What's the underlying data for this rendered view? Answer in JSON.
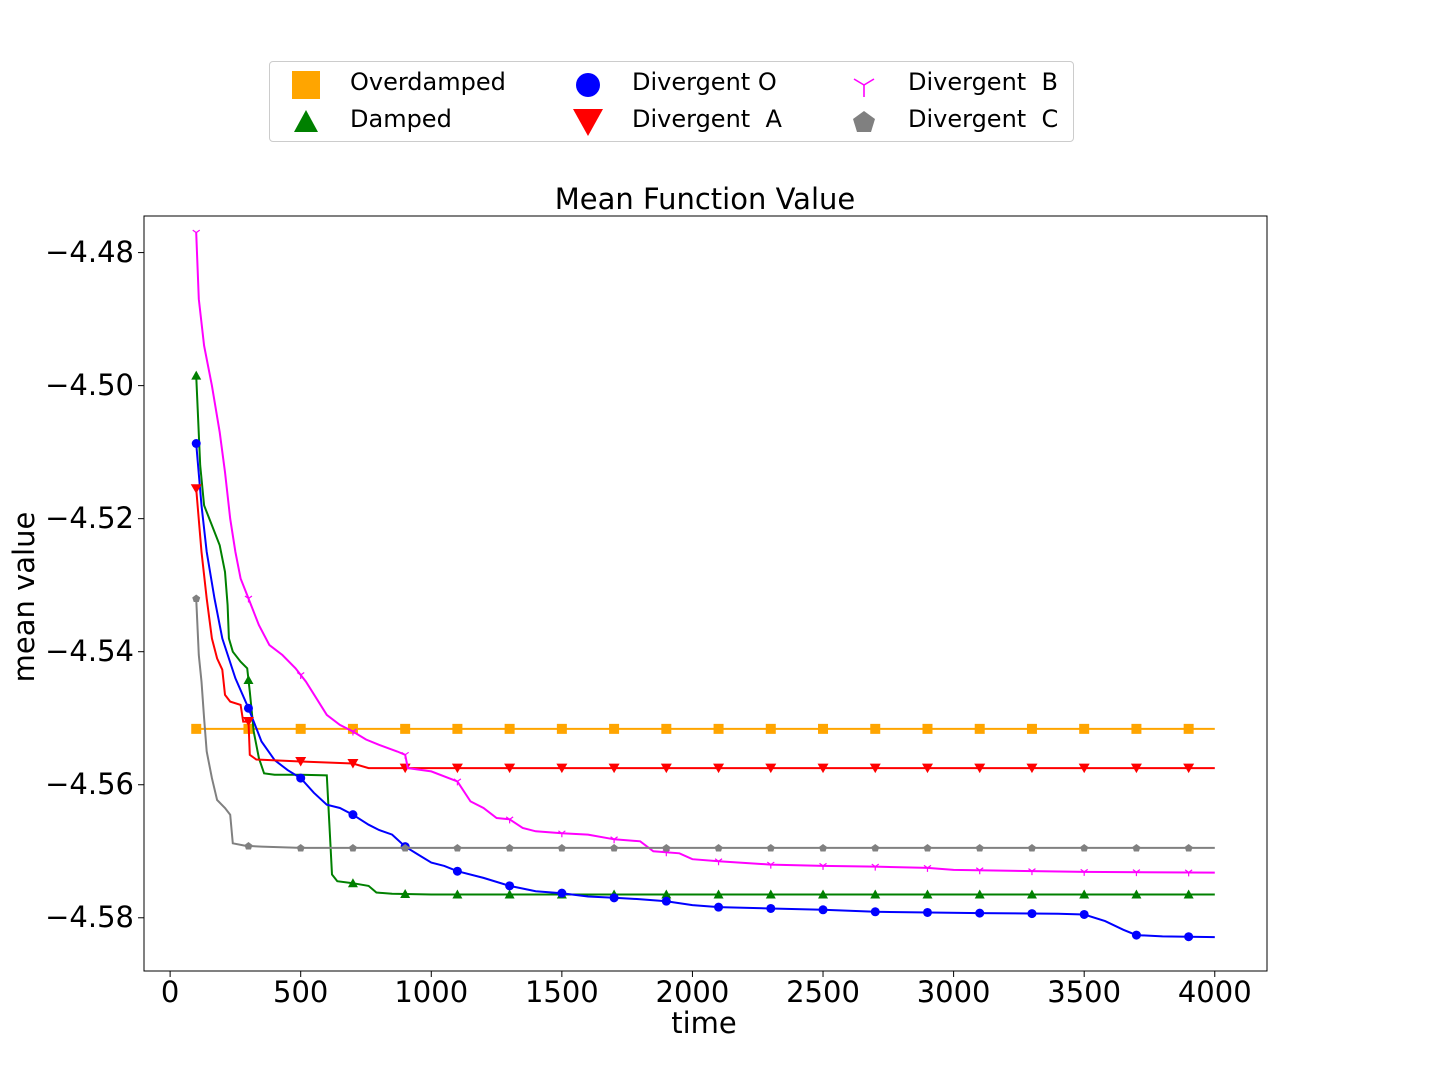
{
  "chart_data": {
    "type": "line",
    "title": "Mean Function Value",
    "xlabel": "time",
    "ylabel": "mean value",
    "xlim": [
      -100,
      4200
    ],
    "ylim": [
      -4.588,
      -4.4745
    ],
    "x_ticks": [
      0,
      500,
      1000,
      1500,
      2000,
      2500,
      3000,
      3500,
      4000
    ],
    "x_tick_labels": [
      "0",
      "500",
      "1000",
      "1500",
      "2000",
      "2500",
      "3000",
      "3500",
      "4000"
    ],
    "y_ticks": [
      -4.48,
      -4.5,
      -4.52,
      -4.54,
      -4.56,
      -4.58
    ],
    "y_tick_labels": [
      "−4.48",
      "−4.50",
      "−4.52",
      "−4.54",
      "−4.56",
      "−4.58"
    ],
    "grid": false,
    "legend_position": "above the plot, three columns",
    "series": [
      {
        "name": "Overdamped",
        "color": "#ffa500",
        "marker": "square",
        "points": [
          [
            100,
            -4.5516
          ],
          [
            4000,
            -4.5516
          ]
        ]
      },
      {
        "name": "Damped",
        "color": "#008000",
        "marker": "triangle-up",
        "points": [
          [
            100,
            -4.4985
          ],
          [
            115,
            -4.512
          ],
          [
            130,
            -4.518
          ],
          [
            160,
            -4.521
          ],
          [
            190,
            -4.524
          ],
          [
            210,
            -4.528
          ],
          [
            220,
            -4.533
          ],
          [
            225,
            -4.538
          ],
          [
            240,
            -4.54
          ],
          [
            270,
            -4.5415
          ],
          [
            295,
            -4.5425
          ],
          [
            305,
            -4.546
          ],
          [
            320,
            -4.552
          ],
          [
            340,
            -4.556
          ],
          [
            360,
            -4.5583
          ],
          [
            400,
            -4.5585
          ],
          [
            500,
            -4.5585
          ],
          [
            600,
            -4.5586
          ],
          [
            610,
            -4.566
          ],
          [
            620,
            -4.5735
          ],
          [
            640,
            -4.5745
          ],
          [
            700,
            -4.5748
          ],
          [
            760,
            -4.5752
          ],
          [
            790,
            -4.5762
          ],
          [
            850,
            -4.5764
          ],
          [
            1000,
            -4.5765
          ],
          [
            4000,
            -4.5765
          ]
        ]
      },
      {
        "name": "Divergent O",
        "color": "#0000ff",
        "marker": "circle",
        "points": [
          [
            100,
            -4.5087
          ],
          [
            120,
            -4.518
          ],
          [
            140,
            -4.525
          ],
          [
            170,
            -4.532
          ],
          [
            200,
            -4.538
          ],
          [
            250,
            -4.544
          ],
          [
            300,
            -4.5485
          ],
          [
            350,
            -4.5535
          ],
          [
            400,
            -4.5563
          ],
          [
            450,
            -4.5578
          ],
          [
            500,
            -4.559
          ],
          [
            550,
            -4.5612
          ],
          [
            600,
            -4.563
          ],
          [
            650,
            -4.5635
          ],
          [
            700,
            -4.5645
          ],
          [
            760,
            -4.566
          ],
          [
            800,
            -4.5668
          ],
          [
            850,
            -4.5675
          ],
          [
            900,
            -4.5693
          ],
          [
            950,
            -4.5705
          ],
          [
            1000,
            -4.5717
          ],
          [
            1050,
            -4.5722
          ],
          [
            1100,
            -4.573
          ],
          [
            1200,
            -4.574
          ],
          [
            1300,
            -4.5752
          ],
          [
            1400,
            -4.576
          ],
          [
            1500,
            -4.5763
          ],
          [
            1600,
            -4.5768
          ],
          [
            1700,
            -4.577
          ],
          [
            1800,
            -4.5772
          ],
          [
            1900,
            -4.5775
          ],
          [
            2000,
            -4.5781
          ],
          [
            2100,
            -4.5784
          ],
          [
            2300,
            -4.5786
          ],
          [
            2500,
            -4.5788
          ],
          [
            2700,
            -4.5791
          ],
          [
            3100,
            -4.5793
          ],
          [
            3400,
            -4.5794
          ],
          [
            3500,
            -4.5795
          ],
          [
            3580,
            -4.5805
          ],
          [
            3650,
            -4.5818
          ],
          [
            3700,
            -4.5826
          ],
          [
            3800,
            -4.5828
          ],
          [
            4000,
            -4.5829
          ]
        ]
      },
      {
        "name": "Divergent  A",
        "color": "#ff0000",
        "marker": "triangle-down",
        "points": [
          [
            100,
            -4.5155
          ],
          [
            120,
            -4.525
          ],
          [
            140,
            -4.532
          ],
          [
            160,
            -4.538
          ],
          [
            180,
            -4.541
          ],
          [
            200,
            -4.5427
          ],
          [
            210,
            -4.5465
          ],
          [
            230,
            -4.5475
          ],
          [
            270,
            -4.548
          ],
          [
            280,
            -4.5505
          ],
          [
            300,
            -4.5505
          ],
          [
            305,
            -4.5555
          ],
          [
            330,
            -4.5562
          ],
          [
            500,
            -4.5565
          ],
          [
            700,
            -4.5568
          ],
          [
            760,
            -4.5575
          ],
          [
            4000,
            -4.5575
          ]
        ]
      },
      {
        "name": "Divergent  B",
        "color": "#ff00ff",
        "marker": "tri-down",
        "points": [
          [
            100,
            -4.477
          ],
          [
            110,
            -4.487
          ],
          [
            130,
            -4.494
          ],
          [
            160,
            -4.5
          ],
          [
            190,
            -4.507
          ],
          [
            210,
            -4.513
          ],
          [
            230,
            -4.52
          ],
          [
            250,
            -4.525
          ],
          [
            270,
            -4.529
          ],
          [
            300,
            -4.532
          ],
          [
            340,
            -4.536
          ],
          [
            380,
            -4.539
          ],
          [
            430,
            -4.5405
          ],
          [
            480,
            -4.5425
          ],
          [
            520,
            -4.5445
          ],
          [
            560,
            -4.547
          ],
          [
            600,
            -4.5495
          ],
          [
            650,
            -4.551
          ],
          [
            700,
            -4.552
          ],
          [
            750,
            -4.5532
          ],
          [
            800,
            -4.554
          ],
          [
            870,
            -4.555
          ],
          [
            900,
            -4.5555
          ],
          [
            910,
            -4.5575
          ],
          [
            1000,
            -4.558
          ],
          [
            1100,
            -4.5595
          ],
          [
            1150,
            -4.5625
          ],
          [
            1200,
            -4.5635
          ],
          [
            1250,
            -4.565
          ],
          [
            1300,
            -4.5652
          ],
          [
            1350,
            -4.5665
          ],
          [
            1400,
            -4.567
          ],
          [
            1500,
            -4.5673
          ],
          [
            1600,
            -4.5675
          ],
          [
            1700,
            -4.5682
          ],
          [
            1800,
            -4.5685
          ],
          [
            1850,
            -4.57
          ],
          [
            1950,
            -4.5703
          ],
          [
            2000,
            -4.5712
          ],
          [
            2100,
            -4.5715
          ],
          [
            2300,
            -4.572
          ],
          [
            2500,
            -4.5722
          ],
          [
            2700,
            -4.5723
          ],
          [
            2900,
            -4.5725
          ],
          [
            3000,
            -4.5728
          ],
          [
            3500,
            -4.5731
          ],
          [
            4000,
            -4.5732
          ]
        ]
      },
      {
        "name": "Divergent  C",
        "color": "#808080",
        "marker": "pentagon",
        "points": [
          [
            100,
            -4.532
          ],
          [
            110,
            -4.5405
          ],
          [
            120,
            -4.5445
          ],
          [
            130,
            -4.55
          ],
          [
            140,
            -4.555
          ],
          [
            160,
            -4.559
          ],
          [
            180,
            -4.5623
          ],
          [
            210,
            -4.5635
          ],
          [
            230,
            -4.5645
          ],
          [
            240,
            -4.5688
          ],
          [
            290,
            -4.5692
          ],
          [
            350,
            -4.5693
          ],
          [
            500,
            -4.5695
          ],
          [
            4000,
            -4.5695
          ]
        ]
      }
    ],
    "marker_x": {
      "Overdamped": [
        100,
        300,
        500,
        700,
        900,
        1100,
        1300,
        1500,
        1700,
        1900,
        2100,
        2300,
        2500,
        2700,
        2900,
        3100,
        3300,
        3500,
        3700,
        3900
      ],
      "Damped": [
        100,
        300,
        700,
        900,
        1100,
        1300,
        1500,
        1700,
        1900,
        2100,
        2300,
        2500,
        2700,
        2900,
        3100,
        3300,
        3500,
        3700,
        3900
      ],
      "Divergent O": [
        100,
        300,
        500,
        700,
        900,
        1100,
        1300,
        1500,
        1700,
        1900,
        2100,
        2300,
        2500,
        2700,
        2900,
        3100,
        3300,
        3500,
        3700,
        3900
      ],
      "Divergent  A": [
        100,
        300,
        500,
        700,
        900,
        1100,
        1300,
        1500,
        1700,
        1900,
        2100,
        2300,
        2500,
        2700,
        2900,
        3100,
        3300,
        3500,
        3700,
        3900
      ],
      "Divergent  B": [
        100,
        300,
        500,
        700,
        900,
        1100,
        1300,
        1500,
        1700,
        1900,
        2100,
        2300,
        2500,
        2700,
        2900,
        3100,
        3300,
        3500,
        3700,
        3900
      ],
      "Divergent  C": [
        100,
        300,
        500,
        700,
        900,
        1100,
        1300,
        1500,
        1700,
        1900,
        2100,
        2300,
        2500,
        2700,
        2900,
        3100,
        3300,
        3500,
        3700,
        3900
      ]
    }
  },
  "legend": {
    "items": [
      {
        "label": "Overdamped",
        "color": "#ffa500",
        "marker": "square"
      },
      {
        "label": "Damped",
        "color": "#008000",
        "marker": "triangle-up"
      },
      {
        "label": "Divergent O",
        "color": "#0000ff",
        "marker": "circle"
      },
      {
        "label": "Divergent  A",
        "color": "#ff0000",
        "marker": "triangle-down"
      },
      {
        "label": "Divergent  B",
        "color": "#ff00ff",
        "marker": "tri-down"
      },
      {
        "label": "Divergent  C",
        "color": "#808080",
        "marker": "pentagon"
      }
    ]
  }
}
